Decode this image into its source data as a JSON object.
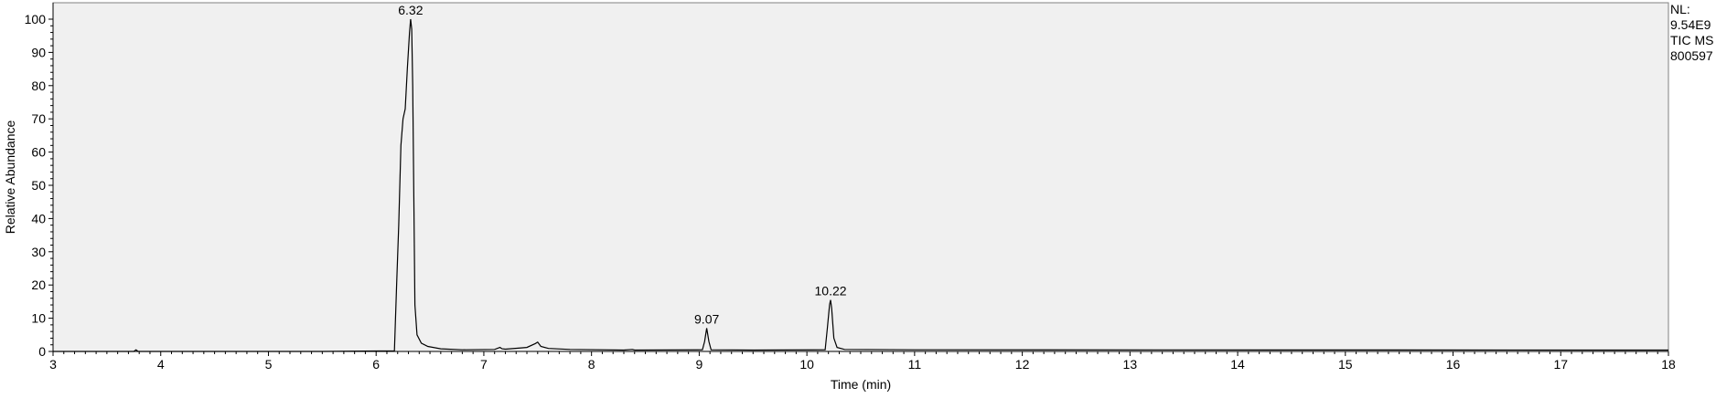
{
  "chart_data": {
    "type": "line",
    "xlabel": "Time (min)",
    "ylabel": "Relative Abundance",
    "xlim": [
      3,
      18
    ],
    "ylim": [
      0,
      100
    ],
    "x_ticks": [
      3,
      4,
      5,
      6,
      7,
      8,
      9,
      10,
      11,
      12,
      13,
      14,
      15,
      16,
      17,
      18
    ],
    "y_ticks": [
      0,
      10,
      20,
      30,
      40,
      50,
      60,
      70,
      80,
      90,
      100
    ],
    "grid": false,
    "info": [
      "NL:",
      "9.54E9",
      "TIC  MS",
      "800597"
    ],
    "peak_labels": [
      {
        "x": 6.32,
        "y": 100,
        "text": "6.32"
      },
      {
        "x": 9.07,
        "y": 7,
        "text": "9.07"
      },
      {
        "x": 10.22,
        "y": 15.5,
        "text": "10.22"
      }
    ],
    "series": [
      {
        "x": [
          3.0,
          3.75,
          3.77,
          3.79,
          5.5,
          6.17,
          6.19,
          6.21,
          6.23,
          6.25,
          6.27,
          6.29,
          6.31,
          6.32,
          6.33,
          6.34,
          6.36,
          6.38,
          6.42,
          6.48,
          6.6,
          6.8,
          7.1,
          7.15,
          7.17,
          7.2,
          7.4,
          7.48,
          7.5,
          7.53,
          7.6,
          7.8,
          8.3,
          8.38,
          8.4,
          9.03,
          9.05,
          9.07,
          9.09,
          9.11,
          9.5,
          10.17,
          10.19,
          10.21,
          10.22,
          10.23,
          10.25,
          10.28,
          10.35,
          11.0,
          18.0
        ],
        "y": [
          0,
          0,
          0.5,
          0,
          0,
          0.2,
          20,
          38,
          62,
          70,
          73,
          85,
          96,
          100,
          97,
          80,
          14,
          5,
          2.5,
          1.5,
          0.8,
          0.5,
          0.6,
          1.2,
          0.8,
          0.7,
          1.2,
          2.4,
          2.8,
          1.5,
          0.9,
          0.6,
          0.4,
          0.6,
          0.4,
          0.5,
          3,
          7,
          3,
          0.5,
          0.4,
          0.5,
          7,
          14,
          15.5,
          13,
          4,
          1.2,
          0.6,
          0.5,
          0.4
        ]
      }
    ]
  }
}
